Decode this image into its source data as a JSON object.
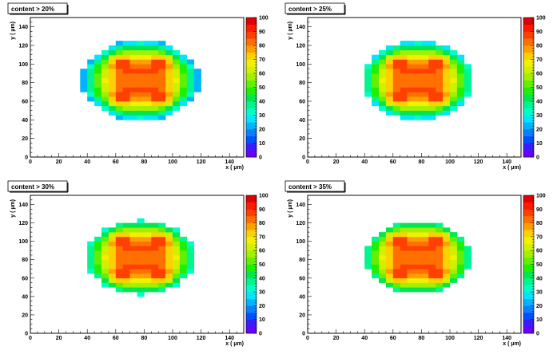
{
  "chart_data": [
    {
      "type": "heatmap",
      "title": "content > 20%",
      "xlabel": "x ( µm)",
      "ylabel": "y ( µm)",
      "xlim": [
        0,
        150
      ],
      "ylim": [
        0,
        150
      ],
      "zlim": [
        0,
        100
      ],
      "x_ticks": [
        "0",
        "20",
        "40",
        "60",
        "80",
        "100",
        "120",
        "140"
      ],
      "y_ticks": [
        "0",
        "20",
        "40",
        "60",
        "80",
        "100",
        "120",
        "140"
      ],
      "z_ticks": [
        "0",
        "10",
        "20",
        "30",
        "40",
        "50",
        "60",
        "70",
        "80",
        "90",
        "100"
      ],
      "threshold": 20
    },
    {
      "type": "heatmap",
      "title": "content > 25%",
      "xlabel": "x ( µm)",
      "ylabel": "y ( µm)",
      "xlim": [
        0,
        150
      ],
      "ylim": [
        0,
        150
      ],
      "zlim": [
        0,
        100
      ],
      "x_ticks": [
        "0",
        "20",
        "40",
        "60",
        "80",
        "100",
        "120",
        "140"
      ],
      "y_ticks": [
        "0",
        "20",
        "40",
        "60",
        "80",
        "100",
        "120",
        "140"
      ],
      "z_ticks": [
        "0",
        "10",
        "20",
        "30",
        "40",
        "50",
        "60",
        "70",
        "80",
        "90",
        "100"
      ],
      "threshold": 25
    },
    {
      "type": "heatmap",
      "title": "content > 30%",
      "xlabel": "x ( µm)",
      "ylabel": "y ( µm)",
      "xlim": [
        0,
        150
      ],
      "ylim": [
        0,
        150
      ],
      "zlim": [
        0,
        100
      ],
      "x_ticks": [
        "0",
        "20",
        "40",
        "60",
        "80",
        "100",
        "120",
        "140"
      ],
      "y_ticks": [
        "0",
        "20",
        "40",
        "60",
        "80",
        "100",
        "120",
        "140"
      ],
      "z_ticks": [
        "0",
        "10",
        "20",
        "30",
        "40",
        "50",
        "60",
        "70",
        "80",
        "90",
        "100"
      ],
      "threshold": 30
    },
    {
      "type": "heatmap",
      "title": "content > 35%",
      "xlabel": "x ( µm)",
      "ylabel": "y ( µm)",
      "xlim": [
        0,
        150
      ],
      "ylim": [
        0,
        150
      ],
      "zlim": [
        0,
        100
      ],
      "x_ticks": [
        "0",
        "20",
        "40",
        "60",
        "80",
        "100",
        "120",
        "140"
      ],
      "y_ticks": [
        "0",
        "20",
        "40",
        "60",
        "80",
        "100",
        "120",
        "140"
      ],
      "z_ticks": [
        "0",
        "10",
        "20",
        "30",
        "40",
        "50",
        "60",
        "70",
        "80",
        "90",
        "100"
      ],
      "threshold": 35
    }
  ],
  "colormap": [
    "#6a00ff",
    "#3b1cff",
    "#0050ff",
    "#0a80ff",
    "#00b4ff",
    "#00e6ff",
    "#00ffc8",
    "#00f58c",
    "#00e650",
    "#20f000",
    "#60f000",
    "#a0f000",
    "#d0f000",
    "#f0f000",
    "#ffd000",
    "#ffa000",
    "#ff7000",
    "#ff4000",
    "#ff1a00",
    "#e00000"
  ],
  "bin_size": 5
}
